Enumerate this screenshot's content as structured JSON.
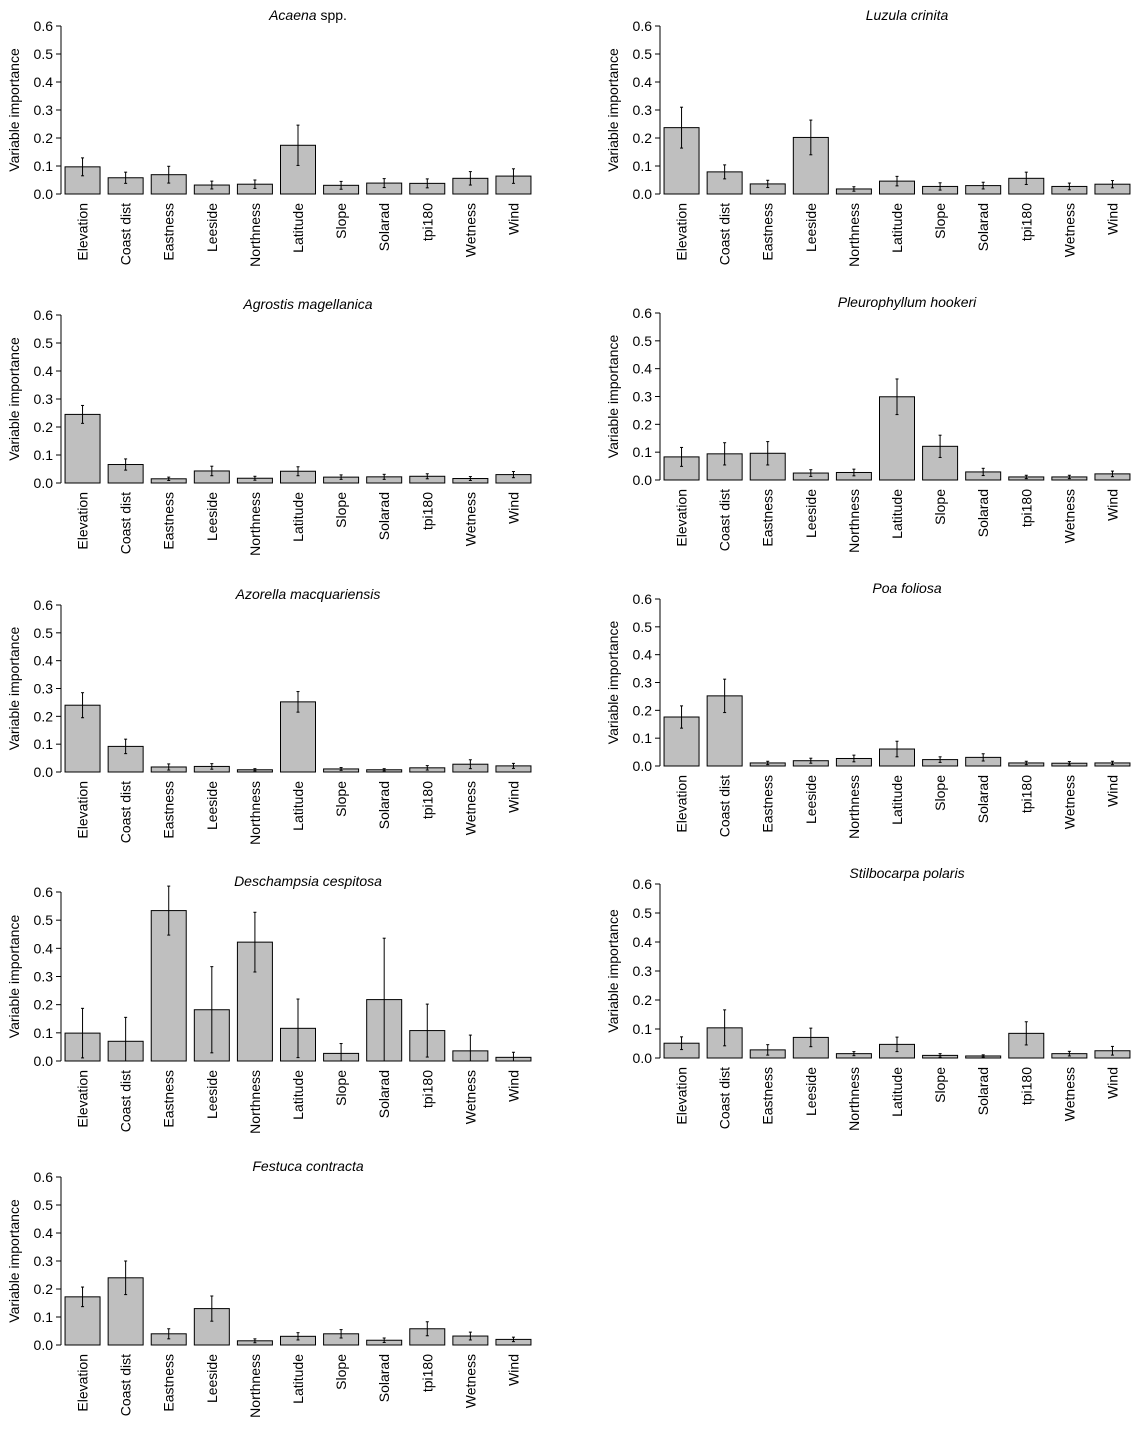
{
  "chart_data": [
    {
      "type": "bar",
      "title_italic": "Acaena",
      "title_plain": " spp.",
      "ylabel": "Variable importance",
      "ylim": [
        0,
        0.6
      ],
      "yticks": [
        "0.0",
        "0.1",
        "0.2",
        "0.3",
        "0.4",
        "0.5",
        "0.6"
      ],
      "categories": [
        "Elevation",
        "Coast dist",
        "Eastness",
        "Leeside",
        "Northness",
        "Latitude",
        "Slope",
        "Solarad",
        "tpi180",
        "Wetness",
        "Wind"
      ],
      "values": [
        0.097,
        0.058,
        0.069,
        0.032,
        0.035,
        0.174,
        0.031,
        0.039,
        0.038,
        0.056,
        0.064
      ],
      "errors": [
        0.032,
        0.02,
        0.03,
        0.014,
        0.015,
        0.072,
        0.014,
        0.016,
        0.016,
        0.024,
        0.026
      ]
    },
    {
      "type": "bar",
      "title_italic": "Luzula crinita",
      "title_plain": "",
      "ylabel": "Variable importance",
      "ylim": [
        0,
        0.6
      ],
      "yticks": [
        "0.0",
        "0.1",
        "0.2",
        "0.3",
        "0.4",
        "0.5",
        "0.6"
      ],
      "categories": [
        "Elevation",
        "Coast dist",
        "Eastness",
        "Leeside",
        "Northness",
        "Latitude",
        "Slope",
        "Solarad",
        "tpi180",
        "Wetness",
        "Wind"
      ],
      "values": [
        0.237,
        0.079,
        0.036,
        0.202,
        0.018,
        0.046,
        0.027,
        0.03,
        0.056,
        0.027,
        0.035
      ],
      "errors": [
        0.073,
        0.025,
        0.013,
        0.062,
        0.008,
        0.017,
        0.013,
        0.012,
        0.022,
        0.012,
        0.013
      ]
    },
    {
      "type": "bar",
      "title_italic": "Agrostis magellanica",
      "title_plain": "",
      "ylabel": "Variable importance",
      "ylim": [
        0,
        0.6
      ],
      "yticks": [
        "0.0",
        "0.1",
        "0.2",
        "0.3",
        "0.4",
        "0.5",
        "0.6"
      ],
      "categories": [
        "Elevation",
        "Coast dist",
        "Eastness",
        "Leeside",
        "Northness",
        "Latitude",
        "Slope",
        "Solarad",
        "tpi180",
        "Wetness",
        "Wind"
      ],
      "values": [
        0.245,
        0.066,
        0.015,
        0.043,
        0.017,
        0.042,
        0.021,
        0.022,
        0.024,
        0.016,
        0.03
      ],
      "errors": [
        0.032,
        0.02,
        0.006,
        0.017,
        0.007,
        0.016,
        0.008,
        0.009,
        0.009,
        0.007,
        0.011
      ]
    },
    {
      "type": "bar",
      "title_italic": "Pleurophyllum hookeri",
      "title_plain": "",
      "ylabel": "Variable importance",
      "ylim": [
        0,
        0.6
      ],
      "yticks": [
        "0.0",
        "0.1",
        "0.2",
        "0.3",
        "0.4",
        "0.5",
        "0.6"
      ],
      "categories": [
        "Elevation",
        "Coast dist",
        "Eastness",
        "Leeside",
        "Northness",
        "Latitude",
        "Slope",
        "Solarad",
        "tpi180",
        "Wetness",
        "Wind"
      ],
      "values": [
        0.083,
        0.094,
        0.096,
        0.025,
        0.027,
        0.299,
        0.121,
        0.029,
        0.011,
        0.011,
        0.022
      ],
      "errors": [
        0.034,
        0.04,
        0.042,
        0.012,
        0.012,
        0.064,
        0.04,
        0.013,
        0.006,
        0.006,
        0.01
      ]
    },
    {
      "type": "bar",
      "title_italic": "Azorella macquariensis",
      "title_plain": "",
      "ylabel": "Variable importance",
      "ylim": [
        0,
        0.6
      ],
      "yticks": [
        "0.0",
        "0.1",
        "0.2",
        "0.3",
        "0.4",
        "0.5",
        "0.6"
      ],
      "categories": [
        "Elevation",
        "Coast dist",
        "Eastness",
        "Leeside",
        "Northness",
        "Latitude",
        "Slope",
        "Solarad",
        "tpi180",
        "Wetness",
        "Wind"
      ],
      "values": [
        0.24,
        0.092,
        0.018,
        0.02,
        0.008,
        0.252,
        0.011,
        0.008,
        0.015,
        0.028,
        0.022
      ],
      "errors": [
        0.045,
        0.026,
        0.011,
        0.01,
        0.004,
        0.037,
        0.005,
        0.004,
        0.008,
        0.016,
        0.009
      ]
    },
    {
      "type": "bar",
      "title_italic": "Poa foliosa",
      "title_plain": "",
      "ylabel": "Variable importance",
      "ylim": [
        0,
        0.6
      ],
      "yticks": [
        "0.0",
        "0.1",
        "0.2",
        "0.3",
        "0.4",
        "0.5",
        "0.6"
      ],
      "categories": [
        "Elevation",
        "Coast dist",
        "Eastness",
        "Leeside",
        "Northness",
        "Latitude",
        "Slope",
        "Solarad",
        "tpi180",
        "Wetness",
        "Wind"
      ],
      "values": [
        0.176,
        0.252,
        0.011,
        0.019,
        0.027,
        0.061,
        0.023,
        0.031,
        0.011,
        0.01,
        0.011
      ],
      "errors": [
        0.04,
        0.06,
        0.006,
        0.009,
        0.012,
        0.028,
        0.01,
        0.013,
        0.006,
        0.006,
        0.006
      ]
    },
    {
      "type": "bar",
      "title_italic": "Deschampsia cespitosa",
      "title_plain": "",
      "ylabel": "Variable importance",
      "ylim": [
        0,
        0.6
      ],
      "yticks": [
        "0.0",
        "0.1",
        "0.2",
        "0.3",
        "0.4",
        "0.5",
        "0.6"
      ],
      "categories": [
        "Elevation",
        "Coast dist",
        "Eastness",
        "Leeside",
        "Northness",
        "Latitude",
        "Slope",
        "Solarad",
        "tpi180",
        "Wetness",
        "Wind"
      ],
      "values": [
        0.099,
        0.07,
        0.534,
        0.182,
        0.422,
        0.116,
        0.027,
        0.218,
        0.108,
        0.036,
        0.013
      ],
      "errors": [
        0.088,
        0.085,
        0.087,
        0.153,
        0.106,
        0.104,
        0.035,
        0.218,
        0.094,
        0.056,
        0.018
      ]
    },
    {
      "type": "bar",
      "title_italic": "Stilbocarpa polaris",
      "title_plain": "",
      "ylabel": "Variable importance",
      "ylim": [
        0,
        0.6
      ],
      "yticks": [
        "0.0",
        "0.1",
        "0.2",
        "0.3",
        "0.4",
        "0.5",
        "0.6"
      ],
      "categories": [
        "Elevation",
        "Coast dist",
        "Eastness",
        "Leeside",
        "Northness",
        "Latitude",
        "Slope",
        "Solarad",
        "tpi180",
        "Wetness",
        "Wind"
      ],
      "values": [
        0.051,
        0.104,
        0.028,
        0.071,
        0.015,
        0.047,
        0.009,
        0.007,
        0.085,
        0.015,
        0.025
      ],
      "errors": [
        0.022,
        0.062,
        0.018,
        0.032,
        0.007,
        0.025,
        0.006,
        0.004,
        0.04,
        0.008,
        0.015
      ]
    },
    {
      "type": "bar",
      "title_italic": "Festuca contracta",
      "title_plain": "",
      "ylabel": "Variable importance",
      "ylim": [
        0,
        0.6
      ],
      "yticks": [
        "0.0",
        "0.1",
        "0.2",
        "0.3",
        "0.4",
        "0.5",
        "0.6"
      ],
      "categories": [
        "Elevation",
        "Coast dist",
        "Eastness",
        "Leeside",
        "Northness",
        "Latitude",
        "Slope",
        "Solarad",
        "tpi180",
        "Wetness",
        "Wind"
      ],
      "values": [
        0.172,
        0.24,
        0.04,
        0.13,
        0.015,
        0.031,
        0.04,
        0.017,
        0.058,
        0.032,
        0.02
      ],
      "errors": [
        0.035,
        0.06,
        0.018,
        0.045,
        0.007,
        0.013,
        0.015,
        0.008,
        0.025,
        0.014,
        0.008
      ]
    }
  ]
}
